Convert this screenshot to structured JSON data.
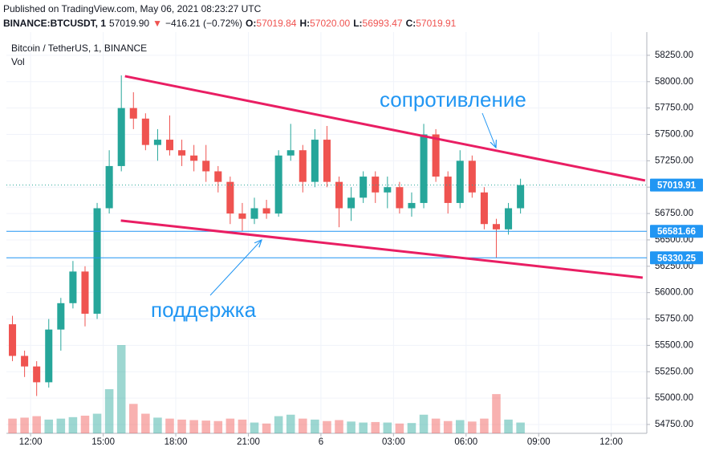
{
  "chart_data": {
    "type": "candlestick",
    "header": {
      "published": "Published on TradingView.com, May 06, 2021 08:23:27 UTC",
      "parts": [
        {
          "text": "BINANCE:BTCUSDT, 1",
          "color": "#131722",
          "bold": true
        },
        {
          "text": "57019.90",
          "color": "#131722",
          "bold": false
        },
        {
          "text": "▼",
          "color": "#ef5350",
          "bold": false
        },
        {
          "text": "−416.21 (−0.72%)",
          "color": "#131722",
          "bold": false
        },
        {
          "text": "O:",
          "color": "#131722",
          "bold": true
        },
        {
          "text": "57019.84",
          "color": "#ef5350",
          "bold": false
        },
        {
          "text": "H:",
          "color": "#131722",
          "bold": true
        },
        {
          "text": "57020.00",
          "color": "#ef5350",
          "bold": false
        },
        {
          "text": "L:",
          "color": "#131722",
          "bold": true
        },
        {
          "text": "56993.47",
          "color": "#ef5350",
          "bold": false
        },
        {
          "text": "C:",
          "color": "#131722",
          "bold": true
        },
        {
          "text": "57019.91",
          "color": "#ef5350",
          "bold": false
        }
      ]
    },
    "title": "Bitcoin / TetherUS, 1, BINANCE",
    "volume_label": "Vol",
    "up_color": "#26a69a",
    "down_color": "#ef5350",
    "grid": true,
    "xlim": [
      11,
      37.47
    ],
    "xticks": [
      {
        "value": 12,
        "label": "12:00"
      },
      {
        "value": 15,
        "label": "15:00"
      },
      {
        "value": 18,
        "label": "18:00"
      },
      {
        "value": 21,
        "label": "21:00"
      },
      {
        "value": 24,
        "label": "6"
      },
      {
        "value": 27,
        "label": "03:00"
      },
      {
        "value": 30,
        "label": "06:00"
      },
      {
        "value": 33,
        "label": "09:00"
      },
      {
        "value": 36,
        "label": "12:00"
      }
    ],
    "ylim": [
      54666,
      58470
    ],
    "yticks": [
      {
        "value": 54750,
        "label": "54750.00"
      },
      {
        "value": 55000,
        "label": "55000.00"
      },
      {
        "value": 55250,
        "label": "55250.00"
      },
      {
        "value": 55500,
        "label": "55500.00"
      },
      {
        "value": 55750,
        "label": "55750.00"
      },
      {
        "value": 56000,
        "label": "56000.00"
      },
      {
        "value": 56250,
        "label": "56250.00"
      },
      {
        "value": 56500,
        "label": "56500.00"
      },
      {
        "value": 56750,
        "label": "56750.00"
      },
      {
        "value": 57000,
        "label": "57000.00"
      },
      {
        "value": 57250,
        "label": "57250.00"
      },
      {
        "value": 57500,
        "label": "57500.00"
      },
      {
        "value": 57750,
        "label": "57750.00"
      },
      {
        "value": 58000,
        "label": "58000.00"
      },
      {
        "value": 58250,
        "label": "58250.00"
      }
    ],
    "x": [
      11.25,
      11.75,
      12.25,
      12.75,
      13.25,
      13.75,
      14.25,
      14.75,
      15.25,
      15.75,
      16.25,
      16.75,
      17.25,
      17.75,
      18.25,
      18.75,
      19.25,
      19.75,
      20.25,
      20.75,
      21.25,
      21.75,
      22.25,
      22.75,
      23.25,
      23.75,
      24.25,
      24.75,
      25.25,
      25.75,
      26.25,
      26.75,
      27.25,
      27.75,
      28.25,
      28.75,
      29.25,
      29.75,
      30.25,
      30.75,
      31.25,
      31.75,
      32.25
    ],
    "ohlc": [
      [
        55700,
        55780,
        55350,
        55400
      ],
      [
        55400,
        55450,
        55200,
        55300
      ],
      [
        55300,
        55350,
        55020,
        55150
      ],
      [
        55150,
        55750,
        55100,
        55650
      ],
      [
        55650,
        55950,
        55450,
        55900
      ],
      [
        55900,
        56300,
        55850,
        56200
      ],
      [
        56200,
        56250,
        55680,
        55800
      ],
      [
        55800,
        56850,
        55750,
        56800
      ],
      [
        56800,
        57350,
        56750,
        57200
      ],
      [
        57200,
        58060,
        57150,
        57750
      ],
      [
        57750,
        57900,
        57550,
        57650
      ],
      [
        57650,
        57700,
        57350,
        57400
      ],
      [
        57400,
        57550,
        57250,
        57450
      ],
      [
        57450,
        57680,
        57300,
        57350
      ],
      [
        57350,
        57450,
        57200,
        57300
      ],
      [
        57300,
        57400,
        57150,
        57250
      ],
      [
        57250,
        57400,
        57050,
        57150
      ],
      [
        57150,
        57200,
        56950,
        57050
      ],
      [
        57050,
        57100,
        56650,
        56750
      ],
      [
        56750,
        56850,
        56580,
        56700
      ],
      [
        56700,
        56900,
        56650,
        56800
      ],
      [
        56800,
        56880,
        56700,
        56750
      ],
      [
        56750,
        57350,
        56720,
        57300
      ],
      [
        57300,
        57600,
        57250,
        57350
      ],
      [
        57350,
        57400,
        56950,
        57050
      ],
      [
        57050,
        57550,
        57000,
        57450
      ],
      [
        57450,
        57580,
        57000,
        57050
      ],
      [
        57050,
        57100,
        56620,
        56800
      ],
      [
        56800,
        57000,
        56680,
        56900
      ],
      [
        56900,
        57150,
        56850,
        57100
      ],
      [
        57100,
        57150,
        56850,
        56950
      ],
      [
        56950,
        57100,
        56800,
        57000
      ],
      [
        57000,
        57050,
        56750,
        56800
      ],
      [
        56800,
        56950,
        56720,
        56850
      ],
      [
        56850,
        57600,
        56800,
        57500
      ],
      [
        57500,
        57550,
        57050,
        57100
      ],
      [
        57100,
        57150,
        56750,
        56850
      ],
      [
        56850,
        57350,
        56800,
        57250
      ],
      [
        57250,
        57300,
        56900,
        56950
      ],
      [
        56950,
        57000,
        56600,
        56650
      ],
      [
        56650,
        56700,
        56330,
        56600
      ],
      [
        56600,
        56850,
        56550,
        56800
      ],
      [
        56800,
        57080,
        56750,
        57020
      ]
    ],
    "volumes": [
      30,
      32,
      35,
      28,
      30,
      33,
      36,
      40,
      90,
      180,
      60,
      40,
      32,
      30,
      28,
      27,
      26,
      25,
      30,
      28,
      22,
      20,
      35,
      38,
      30,
      28,
      25,
      27,
      24,
      22,
      23,
      22,
      20,
      21,
      38,
      30,
      25,
      27,
      24,
      30,
      80,
      28,
      22
    ],
    "last_price": 57019.91,
    "levels": [
      56581.66,
      56330.25
    ],
    "level_color": "#2196f3",
    "trend_lines": [
      {
        "x": [
          15.9,
          37.4
        ],
        "y": [
          58052,
          57063
        ]
      },
      {
        "x": [
          15.73,
          37.3
        ],
        "y": [
          56683,
          56142
        ]
      }
    ],
    "trend_color": "#e91e63",
    "annotations": [
      "сопротивление",
      "поддержка"
    ]
  }
}
